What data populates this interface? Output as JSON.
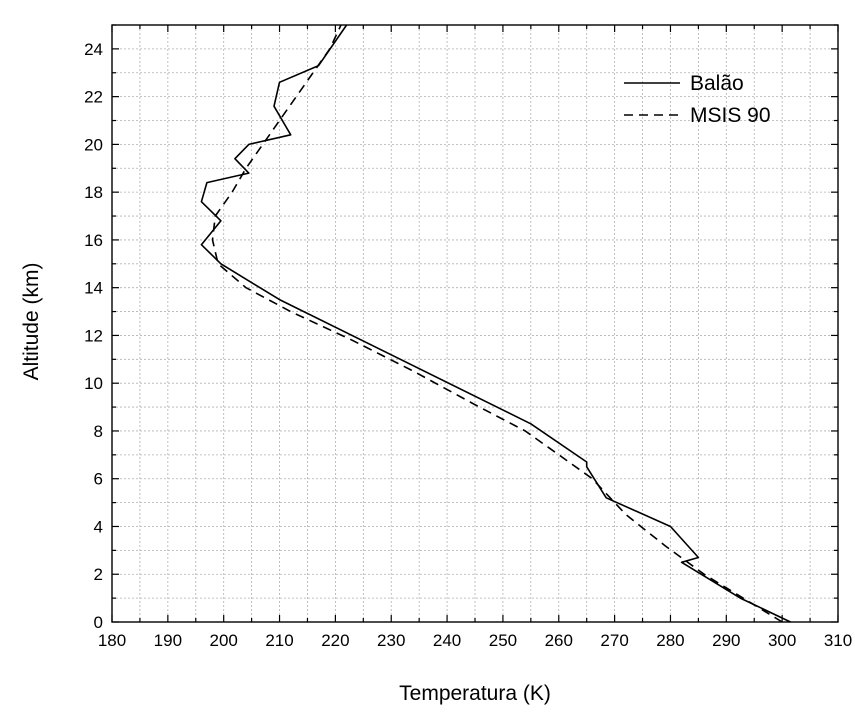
{
  "chart_data": {
    "type": "line",
    "xlabel": "Temperatura (K)",
    "ylabel": "Altitude (km)",
    "xlim": [
      180,
      310
    ],
    "ylim": [
      0,
      25
    ],
    "xticks": [
      "180",
      "190",
      "200",
      "210",
      "220",
      "230",
      "240",
      "250",
      "260",
      "270",
      "280",
      "290",
      "300",
      "310"
    ],
    "yticks": [
      "0",
      "2",
      "4",
      "6",
      "8",
      "10",
      "12",
      "14",
      "16",
      "18",
      "20",
      "22",
      "24"
    ],
    "grid": true,
    "legend_position": "top-right",
    "series": [
      {
        "name": "Balão",
        "style": "solid",
        "color": "#000000",
        "points": [
          [
            301.5,
            0.0
          ],
          [
            292.5,
            1.0
          ],
          [
            282.0,
            2.5
          ],
          [
            285.0,
            2.7
          ],
          [
            280.0,
            4.0
          ],
          [
            268.5,
            5.2
          ],
          [
            265.0,
            6.5
          ],
          [
            265.0,
            6.7
          ],
          [
            255.0,
            8.3
          ],
          [
            210.0,
            13.5
          ],
          [
            199.5,
            15.0
          ],
          [
            196.0,
            15.8
          ],
          [
            199.5,
            16.8
          ],
          [
            196.0,
            17.6
          ],
          [
            197.0,
            18.4
          ],
          [
            204.5,
            18.8
          ],
          [
            202.0,
            19.4
          ],
          [
            204.5,
            20.0
          ],
          [
            212.0,
            20.4
          ],
          [
            209.0,
            21.6
          ],
          [
            210.0,
            22.6
          ],
          [
            217.0,
            23.3
          ],
          [
            222.0,
            25.0
          ]
        ]
      },
      {
        "name": "MSIS 90",
        "style": "dashed",
        "color": "#000000",
        "points": [
          [
            300.0,
            0.0
          ],
          [
            293.0,
            1.0
          ],
          [
            286.0,
            2.0
          ],
          [
            279.0,
            3.2
          ],
          [
            272.0,
            4.5
          ],
          [
            266.0,
            6.0
          ],
          [
            260.0,
            7.0
          ],
          [
            254.0,
            8.0
          ],
          [
            245.0,
            9.1
          ],
          [
            234.0,
            10.5
          ],
          [
            223.0,
            11.8
          ],
          [
            212.0,
            13.0
          ],
          [
            204.0,
            14.0
          ],
          [
            199.0,
            15.0
          ],
          [
            198.0,
            16.0
          ],
          [
            198.5,
            17.0
          ],
          [
            201.5,
            18.0
          ],
          [
            204.0,
            19.0
          ],
          [
            207.0,
            20.0
          ],
          [
            210.0,
            21.0
          ],
          [
            213.0,
            22.0
          ],
          [
            216.0,
            23.0
          ],
          [
            219.0,
            24.0
          ],
          [
            221.0,
            25.0
          ]
        ]
      }
    ]
  }
}
